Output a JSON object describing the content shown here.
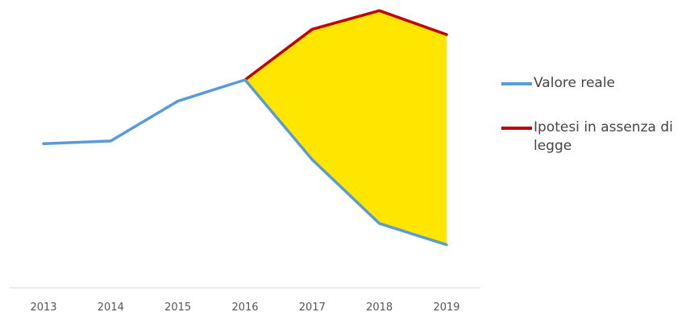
{
  "chart_data": {
    "type": "line",
    "title": "",
    "xlabel": "",
    "ylabel": "",
    "x": [
      "2013",
      "2014",
      "2015",
      "2016",
      "2017",
      "2018",
      "2019"
    ],
    "series": [
      {
        "name": "Valore reale",
        "color": "#5b9bd5",
        "values": [
          46,
          47,
          62,
          70,
          40,
          16,
          8
        ]
      },
      {
        "name": "Ipotesi in assenza di legge",
        "color": "#c00000",
        "values": [
          null,
          null,
          null,
          70,
          89,
          96,
          87
        ]
      }
    ],
    "gap_fill": {
      "between": [
        "Valore reale",
        "Ipotesi in assenza di legge"
      ],
      "from": "2016",
      "to": "2019",
      "color": "#ffe600"
    },
    "ylim": [
      0,
      100
    ],
    "grid": false,
    "y_axis_visible": false,
    "legend_position": "right"
  }
}
